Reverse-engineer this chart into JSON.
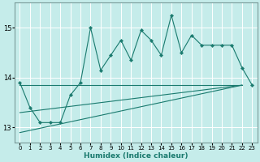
{
  "xlabel": "Humidex (Indice chaleur)",
  "ylabel": "",
  "bg_color": "#c5ecea",
  "line_color": "#1a7a6e",
  "grid_color": "#ffffff",
  "xlim": [
    -0.5,
    23.5
  ],
  "ylim": [
    12.7,
    15.5
  ],
  "yticks": [
    13,
    14,
    15
  ],
  "xticks": [
    0,
    1,
    2,
    3,
    4,
    5,
    6,
    7,
    8,
    9,
    10,
    11,
    12,
    13,
    14,
    15,
    16,
    17,
    18,
    19,
    20,
    21,
    22,
    23
  ],
  "x": [
    0,
    1,
    2,
    3,
    4,
    5,
    6,
    7,
    8,
    9,
    10,
    11,
    12,
    13,
    14,
    15,
    16,
    17,
    18,
    19,
    20,
    21,
    22,
    23
  ],
  "y_main": [
    13.9,
    13.4,
    13.1,
    13.1,
    13.1,
    13.65,
    13.9,
    15.0,
    14.15,
    14.45,
    14.75,
    14.35,
    14.95,
    14.75,
    14.45,
    15.25,
    14.5,
    14.85,
    14.65,
    14.65,
    14.65,
    14.65,
    14.2,
    13.85
  ],
  "y_line1_start": 13.85,
  "y_line1_end": 13.85,
  "y_line2_start": 13.3,
  "y_line2_end": 13.85,
  "y_line3_start": 12.9,
  "y_line3_end": 13.85
}
